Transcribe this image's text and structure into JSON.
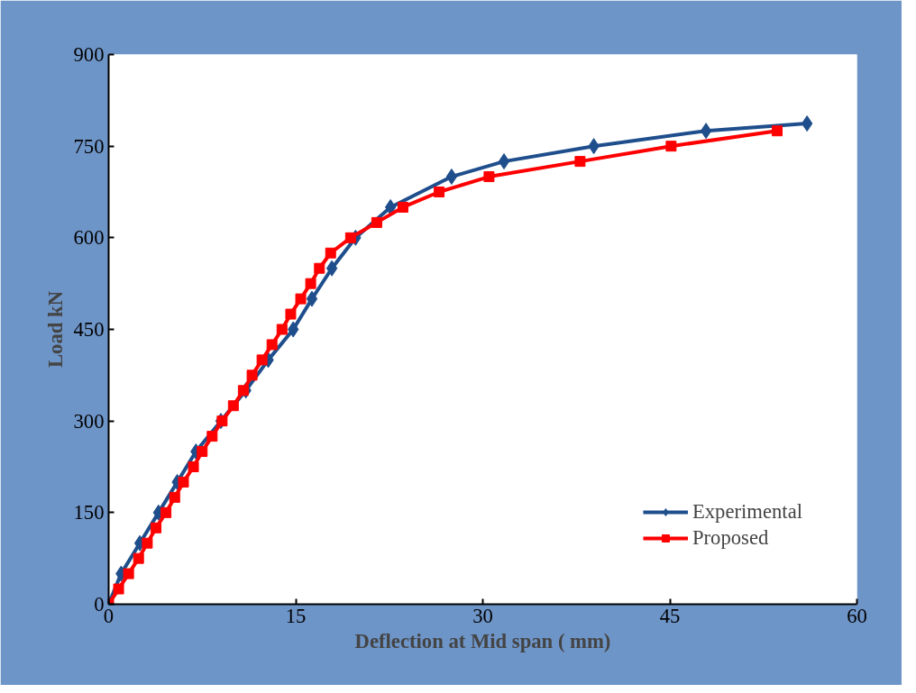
{
  "chart_data": {
    "type": "line",
    "xlabel": "Deflection at Mid span ( mm)",
    "ylabel": "Load kN",
    "xlim": [
      0,
      60
    ],
    "ylim": [
      0,
      900
    ],
    "xticks": [
      0,
      15,
      30,
      45,
      60
    ],
    "yticks": [
      0,
      150,
      300,
      450,
      600,
      750,
      900
    ],
    "grid": false,
    "legend": "bottom right",
    "series": [
      {
        "name": "Experimental",
        "color": "#1f4e8c",
        "marker": "diamond",
        "x": [
          0,
          1.0,
          2.5,
          4.0,
          5.5,
          7.0,
          9.0,
          11.0,
          12.8,
          14.8,
          16.3,
          17.9,
          19.8,
          22.6,
          27.5,
          31.7,
          38.9,
          47.9,
          56.0
        ],
        "values": [
          0,
          50,
          100,
          150,
          200,
          250,
          300,
          350,
          400,
          450,
          500,
          550,
          600,
          650,
          700,
          725,
          750,
          775,
          787
        ]
      },
      {
        "name": "Proposed",
        "color": "#ff0000",
        "marker": "square",
        "x": [
          0,
          0.8,
          1.6,
          2.4,
          3.1,
          3.8,
          4.6,
          5.3,
          6.0,
          6.8,
          7.5,
          8.3,
          9.1,
          10.0,
          10.8,
          11.5,
          12.3,
          13.1,
          13.9,
          14.6,
          15.4,
          16.2,
          16.9,
          17.8,
          19.4,
          21.5,
          23.6,
          26.5,
          30.5,
          37.8,
          45.1,
          53.6
        ],
        "values": [
          0,
          25,
          50,
          75,
          100,
          125,
          150,
          175,
          200,
          225,
          250,
          275,
          300,
          325,
          350,
          375,
          400,
          425,
          450,
          475,
          500,
          525,
          550,
          575,
          600,
          625,
          650,
          675,
          700,
          725,
          750,
          775
        ]
      }
    ]
  }
}
